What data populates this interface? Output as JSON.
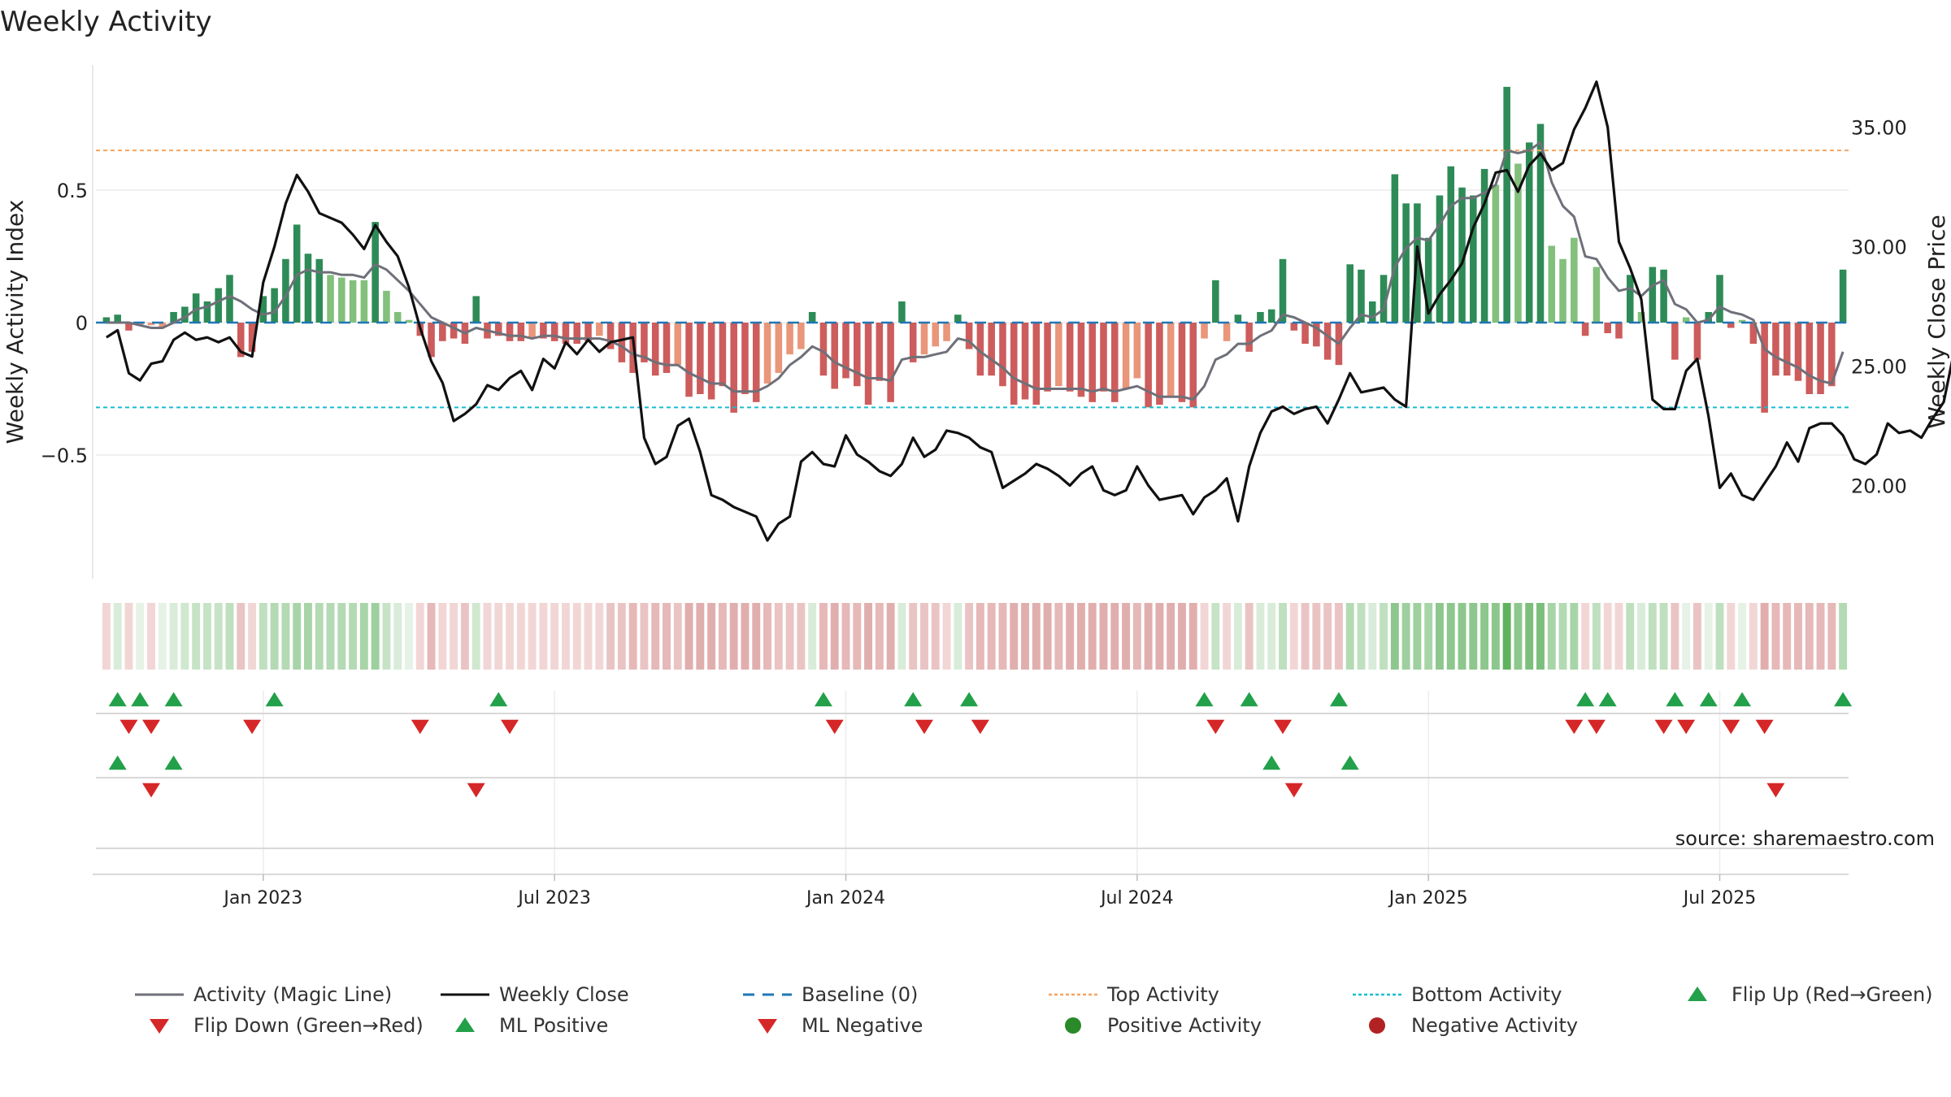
{
  "chart_data": {
    "type": "bar",
    "title": "Weekly Activity",
    "ylabel_left": "Weekly Activity Index",
    "ylabel_right": "Weekly Close Price",
    "ylim_left": [
      -0.97,
      0.97
    ],
    "ylim_right": [
      16.2,
      38.4
    ],
    "left_ticks": [
      {
        "value": 0.5,
        "label": "0.5"
      },
      {
        "value": 0.0,
        "label": "0"
      },
      {
        "value": -0.5,
        "label": "−0.5"
      }
    ],
    "right_ticks": [
      {
        "value": 35,
        "label": "35.00"
      },
      {
        "value": 30,
        "label": "30.00"
      },
      {
        "value": 25,
        "label": "25.00"
      },
      {
        "value": 20,
        "label": "20.00"
      }
    ],
    "x_ticks": [
      {
        "week": 14.5,
        "label": "Jan 2023"
      },
      {
        "week": 40.5,
        "label": "Jul 2023"
      },
      {
        "week": 66.5,
        "label": "Jan 2024"
      },
      {
        "week": 92.5,
        "label": "Jul 2024"
      },
      {
        "week": 118.5,
        "label": "Jan 2025"
      },
      {
        "week": 144.5,
        "label": "Jul 2025"
      }
    ],
    "top_activity": 0.65,
    "bottom_activity": -0.32,
    "colors": {
      "pos_strong": "#2e8b57",
      "pos_light": "#82c07c",
      "neg_strong": "#cd5c5c",
      "neg_light": "#e9967a",
      "magic": "#6e7079",
      "close": "#111111",
      "baseline": "#1f77b4",
      "top": "#f4a460",
      "bottom": "#17becf",
      "flip_up": "#22a04a",
      "flip_down": "#d62728",
      "pos_dot": "#2a8a2a",
      "neg_dot": "#b22222"
    },
    "flip_up_weeks": [
      1,
      3,
      6,
      15,
      35,
      64,
      72,
      77,
      98,
      102,
      110,
      132,
      134,
      140,
      143,
      146,
      155
    ],
    "flip_down_weeks": [
      2,
      4,
      13,
      28,
      36,
      65,
      73,
      78,
      99,
      105,
      131,
      133,
      139,
      141,
      145,
      148
    ],
    "ml_positive_weeks": [
      1,
      6,
      104,
      111
    ],
    "ml_negative_weeks": [
      4,
      33,
      106,
      149
    ],
    "source": "source: sharemaestro.com",
    "legend": [
      {
        "label": "Activity (Magic Line)",
        "symbol": "line",
        "color": "#6e7079"
      },
      {
        "label": "Weekly Close",
        "symbol": "line",
        "color": "#111111"
      },
      {
        "label": "Baseline (0)",
        "symbol": "dash",
        "color": "#1f77b4"
      },
      {
        "label": "Top Activity",
        "symbol": "dot-line",
        "color": "#f4a460"
      },
      {
        "label": "Bottom Activity",
        "symbol": "dot-line",
        "color": "#17becf"
      },
      {
        "label": "Flip Up (Red→Green)",
        "symbol": "up",
        "color": "#22a04a"
      },
      {
        "label": "Flip Down (Green→Red)",
        "symbol": "down",
        "color": "#d62728"
      },
      {
        "label": "ML Positive",
        "symbol": "up",
        "color": "#22a04a"
      },
      {
        "label": "ML Negative",
        "symbol": "down",
        "color": "#d62728"
      },
      {
        "label": "Positive Activity",
        "symbol": "circle",
        "color": "#2a8a2a"
      },
      {
        "label": "Negative Activity",
        "symbol": "circle",
        "color": "#b22222"
      }
    ],
    "activity": [
      0.02,
      0.03,
      -0.03,
      -0.01,
      -0.01,
      -0.02,
      0.04,
      0.06,
      0.11,
      0.08,
      0.13,
      0.18,
      -0.13,
      -0.11,
      0.1,
      0.13,
      0.24,
      0.37,
      0.26,
      0.24,
      0.18,
      0.17,
      0.16,
      0.16,
      0.38,
      0.12,
      0.04,
      0.01,
      -0.05,
      -0.13,
      -0.07,
      -0.06,
      -0.08,
      0.1,
      -0.06,
      -0.05,
      -0.07,
      -0.07,
      -0.06,
      -0.06,
      -0.07,
      -0.08,
      -0.08,
      -0.07,
      -0.05,
      -0.1,
      -0.15,
      -0.19,
      -0.15,
      -0.2,
      -0.19,
      -0.16,
      -0.28,
      -0.27,
      -0.29,
      -0.24,
      -0.34,
      -0.27,
      -0.3,
      -0.23,
      -0.19,
      -0.12,
      -0.1,
      0.04,
      -0.2,
      -0.25,
      -0.21,
      -0.24,
      -0.31,
      -0.22,
      -0.3,
      0.08,
      -0.15,
      -0.12,
      -0.09,
      -0.07,
      0.03,
      -0.1,
      -0.2,
      -0.2,
      -0.24,
      -0.31,
      -0.29,
      -0.31,
      -0.26,
      -0.24,
      -0.26,
      -0.28,
      -0.3,
      -0.26,
      -0.3,
      -0.25,
      -0.21,
      -0.32,
      -0.31,
      -0.28,
      -0.3,
      -0.32,
      -0.06,
      0.16,
      -0.07,
      0.03,
      -0.11,
      0.04,
      0.05,
      0.24,
      -0.03,
      -0.08,
      -0.09,
      -0.14,
      -0.16,
      0.22,
      0.2,
      0.08,
      0.18,
      0.56,
      0.45,
      0.45,
      0.32,
      0.48,
      0.59,
      0.51,
      0.48,
      0.58,
      0.52,
      0.89,
      0.6,
      0.68,
      0.75,
      0.29,
      0.24,
      0.32,
      -0.05,
      0.21,
      -0.04,
      -0.06,
      0.18,
      0.04,
      0.21,
      0.2,
      -0.14,
      0.02,
      -0.14,
      0.04,
      0.18,
      -0.02,
      0.01,
      -0.08,
      -0.34,
      -0.2,
      -0.2,
      -0.22,
      -0.27,
      -0.27,
      -0.24,
      0.2
    ],
    "magic_line": [
      0.0,
      0.0,
      0.0,
      -0.01,
      -0.02,
      -0.02,
      0.0,
      0.02,
      0.05,
      0.06,
      0.08,
      0.1,
      0.08,
      0.05,
      0.03,
      0.04,
      0.1,
      0.18,
      0.2,
      0.19,
      0.19,
      0.18,
      0.18,
      0.17,
      0.22,
      0.2,
      0.16,
      0.12,
      0.07,
      0.02,
      -0.0,
      -0.02,
      -0.04,
      -0.02,
      -0.03,
      -0.04,
      -0.05,
      -0.05,
      -0.06,
      -0.05,
      -0.05,
      -0.06,
      -0.06,
      -0.06,
      -0.06,
      -0.07,
      -0.09,
      -0.12,
      -0.13,
      -0.15,
      -0.16,
      -0.16,
      -0.19,
      -0.21,
      -0.23,
      -0.23,
      -0.26,
      -0.26,
      -0.26,
      -0.24,
      -0.21,
      -0.16,
      -0.13,
      -0.09,
      -0.11,
      -0.15,
      -0.17,
      -0.19,
      -0.21,
      -0.21,
      -0.22,
      -0.14,
      -0.13,
      -0.13,
      -0.12,
      -0.11,
      -0.06,
      -0.07,
      -0.11,
      -0.14,
      -0.17,
      -0.21,
      -0.23,
      -0.25,
      -0.25,
      -0.25,
      -0.25,
      -0.25,
      -0.26,
      -0.25,
      -0.26,
      -0.25,
      -0.24,
      -0.26,
      -0.28,
      -0.28,
      -0.28,
      -0.29,
      -0.24,
      -0.14,
      -0.12,
      -0.08,
      -0.08,
      -0.05,
      -0.03,
      0.03,
      0.02,
      -0.0,
      -0.02,
      -0.05,
      -0.08,
      -0.02,
      0.03,
      0.02,
      0.05,
      0.21,
      0.28,
      0.32,
      0.31,
      0.37,
      0.44,
      0.47,
      0.47,
      0.49,
      0.52,
      0.65,
      0.64,
      0.65,
      0.68,
      0.53,
      0.44,
      0.4,
      0.25,
      0.24,
      0.17,
      0.12,
      0.13,
      0.1,
      0.14,
      0.16,
      0.07,
      0.05,
      0.0,
      0.01,
      0.06,
      0.04,
      0.03,
      0.01,
      -0.1,
      -0.13,
      -0.15,
      -0.17,
      -0.2,
      -0.22,
      -0.23,
      -0.11
    ],
    "weekly_close": [
      26.2,
      26.5,
      24.7,
      24.4,
      25.1,
      25.2,
      26.1,
      26.4,
      26.1,
      26.2,
      26.0,
      26.2,
      25.6,
      25.4,
      28.5,
      30.0,
      31.8,
      33.0,
      32.3,
      31.4,
      31.2,
      31.0,
      30.5,
      29.9,
      30.9,
      30.2,
      29.6,
      28.3,
      26.6,
      25.2,
      24.3,
      22.7,
      23.0,
      23.4,
      24.2,
      24.0,
      24.5,
      24.8,
      24.0,
      25.3,
      24.9,
      26.0,
      25.5,
      26.1,
      25.6,
      26.0,
      26.1,
      26.2,
      22.0,
      20.9,
      21.2,
      22.5,
      22.8,
      21.4,
      19.6,
      19.4,
      19.1,
      18.9,
      18.7,
      17.7,
      18.4,
      18.7,
      21.0,
      21.4,
      20.9,
      20.8,
      22.1,
      21.3,
      21.0,
      20.6,
      20.4,
      20.9,
      22.0,
      21.2,
      21.5,
      22.3,
      22.2,
      22.0,
      21.6,
      21.4,
      19.9,
      20.2,
      20.5,
      20.9,
      20.7,
      20.4,
      20.0,
      20.5,
      20.8,
      19.8,
      19.6,
      19.8,
      20.8,
      20.0,
      19.4,
      19.5,
      19.6,
      18.8,
      19.5,
      19.8,
      20.3,
      18.5,
      20.8,
      22.2,
      23.1,
      23.3,
      23.0,
      23.2,
      23.3,
      22.6,
      23.6,
      24.7,
      23.9,
      24.0,
      24.1,
      23.6,
      23.3,
      30.0,
      27.2,
      28.0,
      28.6,
      29.3,
      30.8,
      31.8,
      33.1,
      33.2,
      32.3,
      33.4,
      33.9,
      33.2,
      33.5,
      34.9,
      35.8,
      36.9,
      35.0,
      30.2,
      29.1,
      27.8,
      23.6,
      23.2,
      23.2,
      24.8,
      25.3,
      22.9,
      19.9,
      20.5,
      19.6,
      19.4,
      20.1,
      20.8,
      21.8,
      21.0,
      22.4,
      22.6,
      22.6,
      22.1,
      21.1,
      20.9,
      21.3,
      22.6,
      22.2,
      22.3,
      22.0,
      22.8,
      23.5,
      25.8
    ],
    "heat_colors": [
      "#f2d6d6",
      "#d9ecd9",
      "#f2d6d6",
      "#e6f2e6",
      "#f2d6d6",
      "#e6f2e6",
      "#d9ecd9",
      "#cfe8cf",
      "#c6e3c6",
      "#c6e3c6",
      "#c6e3c6",
      "#bfe0bf",
      "#eac4c4",
      "#f2d6d6",
      "#bfe0bf",
      "#b4dab4",
      "#b4dab4",
      "#a8d5a8",
      "#a8d5a8",
      "#b4dab4",
      "#b4dab4",
      "#b4dab4",
      "#b4dab4",
      "#a8d5a8",
      "#9ecf9e",
      "#c6e3c6",
      "#d9ecd9",
      "#e6f2e6",
      "#f2d6d6",
      "#e6b8b8",
      "#f2d6d6",
      "#f2d6d6",
      "#eac4c4",
      "#cfe8cf",
      "#f2d6d6",
      "#f2d6d6",
      "#f2d6d6",
      "#f2d6d6",
      "#f2d6d6",
      "#f2d6d6",
      "#f2d6d6",
      "#f2d6d6",
      "#f2d6d6",
      "#f2d6d6",
      "#f2d6d6",
      "#eac4c4",
      "#eac4c4",
      "#e6b8b8",
      "#eac4c4",
      "#e6b8b8",
      "#e6b8b8",
      "#eac4c4",
      "#e1aeae",
      "#e1aeae",
      "#e1aeae",
      "#e6b8b8",
      "#e1aeae",
      "#e1aeae",
      "#e1aeae",
      "#e6b8b8",
      "#eac4c4",
      "#eac4c4",
      "#eac4c4",
      "#d9ecd9",
      "#e6b8b8",
      "#e1aeae",
      "#e6b8b8",
      "#e6b8b8",
      "#e1aeae",
      "#e6b8b8",
      "#e1aeae",
      "#d9ecd9",
      "#eac4c4",
      "#eac4c4",
      "#eac4c4",
      "#f2d6d6",
      "#d9ecd9",
      "#eac4c4",
      "#e6b8b8",
      "#e6b8b8",
      "#e6b8b8",
      "#e1aeae",
      "#e1aeae",
      "#e1aeae",
      "#e1aeae",
      "#e6b8b8",
      "#e1aeae",
      "#e1aeae",
      "#e1aeae",
      "#e1aeae",
      "#e1aeae",
      "#e1aeae",
      "#e6b8b8",
      "#e1aeae",
      "#e1aeae",
      "#e1aeae",
      "#e1aeae",
      "#e1aeae",
      "#f2d6d6",
      "#c6e3c6",
      "#f2d6d6",
      "#d9ecd9",
      "#eac4c4",
      "#d9ecd9",
      "#d9ecd9",
      "#bfe0bf",
      "#f2d6d6",
      "#eac4c4",
      "#eac4c4",
      "#eac4c4",
      "#eac4c4",
      "#b4dab4",
      "#bfe0bf",
      "#d9ecd9",
      "#bfe0bf",
      "#8dc78d",
      "#9ecf9e",
      "#9ecf9e",
      "#a8d5a8",
      "#8dc78d",
      "#8dc78d",
      "#8dc78d",
      "#8dc78d",
      "#8dc78d",
      "#8dc78d",
      "#5fb35f",
      "#8dc78d",
      "#7cbf7c",
      "#7cbf7c",
      "#a8d5a8",
      "#b4dab4",
      "#a8d5a8",
      "#f2d6d6",
      "#bfe0bf",
      "#f2d6d6",
      "#f2d6d6",
      "#bfe0bf",
      "#d9ecd9",
      "#bfe0bf",
      "#bfe0bf",
      "#eac4c4",
      "#e6f2e6",
      "#eac4c4",
      "#e6f2e6",
      "#bfe0bf",
      "#f2d6d6",
      "#e6f2e6",
      "#f2d6d6",
      "#e1aeae",
      "#e6b8b8",
      "#e6b8b8",
      "#e6b8b8",
      "#e6b8b8",
      "#e6b8b8",
      "#e6b8b8",
      "#b4dab4"
    ]
  }
}
